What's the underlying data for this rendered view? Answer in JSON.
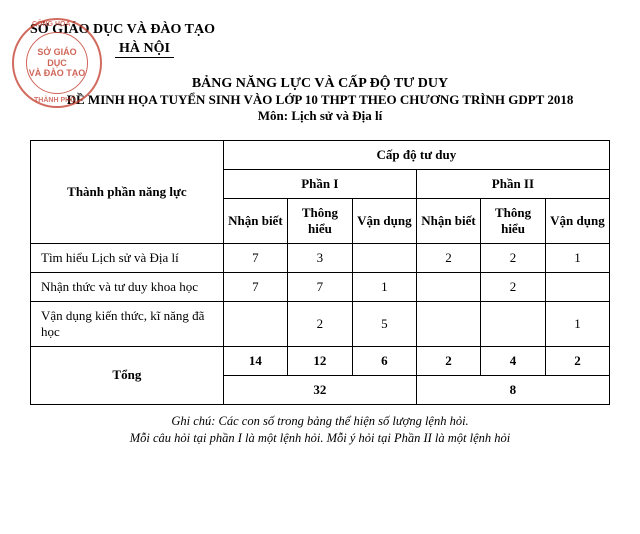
{
  "header": {
    "org": "SỞ GIÁO DỤC VÀ ĐÀO TẠO",
    "city": "HÀ NỘI"
  },
  "stamp": {
    "line1": "SỞ GIÁO DỤC",
    "line2": "VÀ ĐÀO TẠO",
    "arc_top": "CỘNG HÒA",
    "arc_bot": "THÀNH PHỐ"
  },
  "titles": {
    "main": "BẢNG NĂNG LỰC VÀ CẤP ĐỘ TƯ DUY",
    "sub": "ĐỀ MINH HỌA TUYỂN SINH VÀO LỚP 10 THPT THEO CHƯƠNG TRÌNH GDPT 2018",
    "subject": "Môn: Lịch sử và Địa lí"
  },
  "table": {
    "col_competency": "Thành phần năng lực",
    "col_level": "Cấp độ tư duy",
    "part1": "Phần I",
    "part2": "Phần II",
    "sub_cols": [
      "Nhận biết",
      "Thông hiểu",
      "Vận dụng",
      "Nhận biết",
      "Thông hiểu",
      "Vận dụng"
    ],
    "rows": [
      {
        "label": "Tìm hiểu Lịch sử và Địa lí",
        "vals": [
          "7",
          "3",
          "",
          "2",
          "2",
          "1"
        ]
      },
      {
        "label": "Nhận thức và tư duy khoa học",
        "vals": [
          "7",
          "7",
          "1",
          "",
          "2",
          ""
        ]
      },
      {
        "label": "Vận dụng kiến thức, kĩ năng đã học",
        "vals": [
          "",
          "2",
          "5",
          "",
          "",
          "1"
        ]
      }
    ],
    "total_label": "Tổng",
    "totals": [
      "14",
      "12",
      "6",
      "2",
      "4",
      "2"
    ],
    "grand": [
      "32",
      "8"
    ]
  },
  "footnote": {
    "line1": "Ghi chú: Các con số trong bảng thể hiện số lượng lệnh hỏi.",
    "line2": "Mỗi câu hỏi tại phần I là một lệnh hỏi. Mỗi ý hỏi tại Phần II là một lệnh hỏi"
  }
}
